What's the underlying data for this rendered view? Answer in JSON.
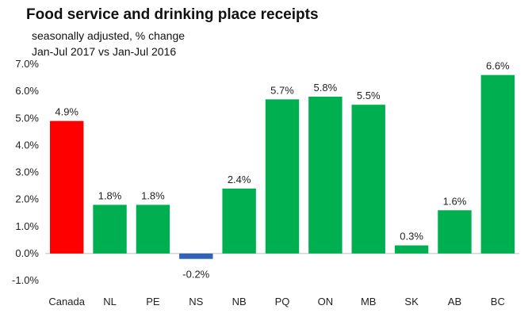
{
  "chart_data": {
    "type": "bar",
    "title": "Food service and drinking place receipts",
    "subtitle_line1": "seasonally adjusted,  % change",
    "subtitle_line2": "Jan-Jul 2017 vs Jan-Jul 2016",
    "xlabel": "",
    "ylabel": "",
    "categories": [
      "Canada",
      "NL",
      "PE",
      "NS",
      "NB",
      "PQ",
      "ON",
      "MB",
      "SK",
      "AB",
      "BC"
    ],
    "values": [
      4.9,
      1.8,
      1.8,
      -0.2,
      2.4,
      5.7,
      5.8,
      5.5,
      0.3,
      1.6,
      6.6
    ],
    "data_labels": [
      "4.9%",
      "1.8%",
      "1.8%",
      "-0.2%",
      "2.4%",
      "5.7%",
      "5.8%",
      "5.5%",
      "0.3%",
      "1.6%",
      "6.6%"
    ],
    "ylim": [
      -1.0,
      7.0
    ],
    "yticks": [
      -1.0,
      0.0,
      1.0,
      2.0,
      3.0,
      4.0,
      5.0,
      6.0,
      7.0
    ],
    "ytick_labels": [
      "-1.0%",
      "0.0%",
      "1.0%",
      "2.0%",
      "3.0%",
      "4.0%",
      "5.0%",
      "6.0%",
      "7.0%"
    ],
    "grid": false,
    "legend": "none",
    "bar_colors": [
      "#ff0000",
      "#00b050",
      "#00b050",
      "#2e63b8",
      "#00b050",
      "#00b050",
      "#00b050",
      "#00b050",
      "#00b050",
      "#00b050",
      "#00b050"
    ]
  }
}
